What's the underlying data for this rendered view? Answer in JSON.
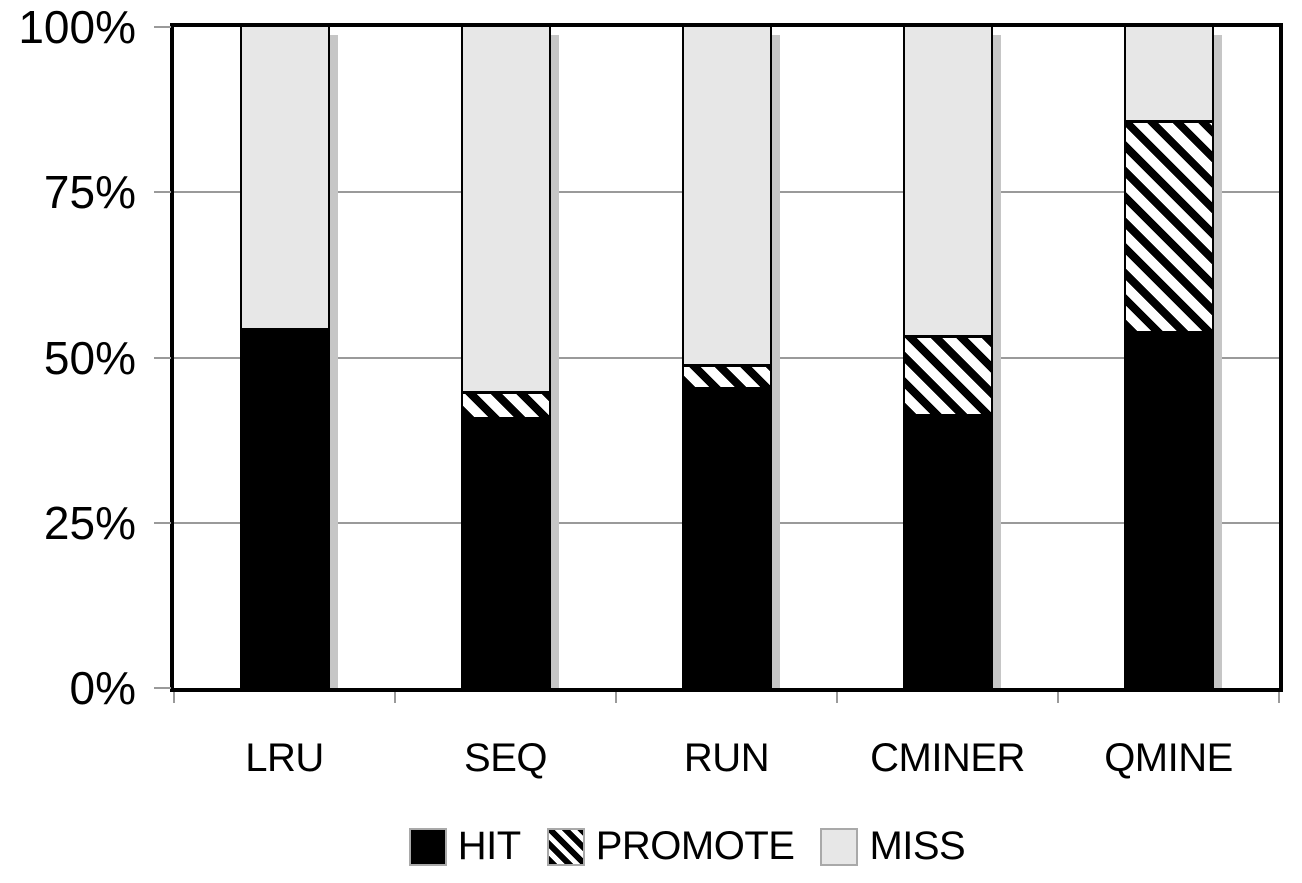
{
  "chart_data": {
    "type": "bar",
    "stacked": true,
    "orientation": "vertical",
    "categories": [
      "LRU",
      "SEQ",
      "RUN",
      "CMINER",
      "QMINE"
    ],
    "series": [
      {
        "name": "HIT",
        "values": [
          54,
          41,
          45.5,
          41.5,
          54
        ]
      },
      {
        "name": "PROMOTE",
        "values": [
          0,
          3.5,
          3,
          11.5,
          31.5
        ]
      },
      {
        "name": "MISS",
        "values": [
          46,
          55.5,
          51.5,
          47,
          14.5
        ]
      }
    ],
    "title": "",
    "xlabel": "",
    "ylabel": "",
    "ylim": [
      0,
      100
    ],
    "ytick_values": [
      0,
      25,
      50,
      75,
      100
    ],
    "ytick_labels": [
      "0%",
      "25%",
      "50%",
      "75%",
      "100%"
    ],
    "grid": "horizontal",
    "legend_position": "bottom",
    "legend": [
      "HIT",
      "PROMOTE",
      "MISS"
    ]
  },
  "styles": {
    "hit_fill": "#000000",
    "promote_stripe": "#000000",
    "promote_bg": "#ffffff",
    "miss_fill": "#e7e7e7",
    "frame_color": "#000000",
    "grid_color": "#9a9a9a",
    "tick_color": "#9a9a9a",
    "bar_shadow": "#c6c6c6"
  }
}
